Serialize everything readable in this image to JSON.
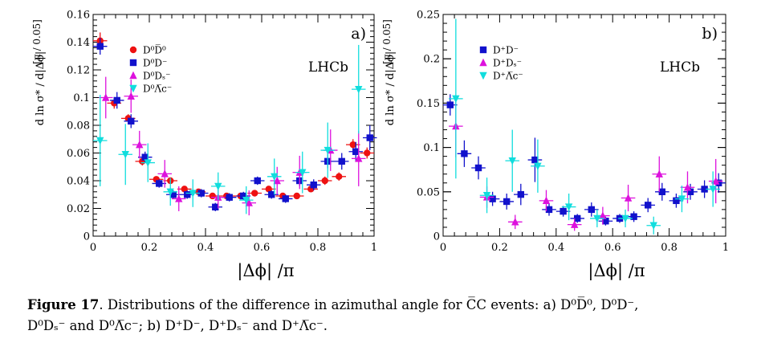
{
  "chart_data": [
    {
      "type": "scatter",
      "panel_label": "a)",
      "experiment_label": "LHCb",
      "xlabel": "|Δϕ| /π",
      "ylabel": "d ln σ* / d|Δϕ|",
      "yunit": "[π / 0.05]",
      "xlim": [
        0,
        1
      ],
      "ylim": [
        0,
        0.16
      ],
      "xticks": [
        "0",
        "0.2",
        "0.4",
        "0.6",
        "0.8",
        "1"
      ],
      "yticks": [
        "0",
        "0.02",
        "0.04",
        "0.06",
        "0.08",
        "0.1",
        "0.12",
        "0.14",
        "0.16"
      ],
      "legend_position": "top-left",
      "grid": false,
      "series": [
        {
          "name": "D⁰D̅⁰",
          "color": "#ee1111",
          "marker": "circle",
          "x": [
            0.025,
            0.075,
            0.125,
            0.175,
            0.225,
            0.275,
            0.325,
            0.375,
            0.425,
            0.475,
            0.525,
            0.575,
            0.625,
            0.675,
            0.725,
            0.775,
            0.825,
            0.875,
            0.925,
            0.975
          ],
          "y": [
            0.141,
            0.096,
            0.085,
            0.054,
            0.041,
            0.04,
            0.034,
            0.032,
            0.029,
            0.029,
            0.029,
            0.031,
            0.034,
            0.029,
            0.029,
            0.034,
            0.04,
            0.043,
            0.066,
            0.06
          ],
          "yerr": [
            0.006,
            0.004,
            0.003,
            0.003,
            0.002,
            0.002,
            0.002,
            0.002,
            0.002,
            0.002,
            0.002,
            0.002,
            0.002,
            0.002,
            0.002,
            0.002,
            0.003,
            0.003,
            0.004,
            0.004
          ]
        },
        {
          "name": "D⁰D⁻",
          "color": "#1111cc",
          "marker": "square",
          "x": [
            0.025,
            0.085,
            0.135,
            0.185,
            0.235,
            0.285,
            0.335,
            0.385,
            0.435,
            0.485,
            0.535,
            0.585,
            0.635,
            0.685,
            0.735,
            0.785,
            0.835,
            0.885,
            0.935,
            0.985
          ],
          "y": [
            0.137,
            0.098,
            0.083,
            0.057,
            0.038,
            0.03,
            0.03,
            0.031,
            0.021,
            0.028,
            0.029,
            0.04,
            0.03,
            0.027,
            0.04,
            0.037,
            0.054,
            0.054,
            0.061,
            0.071
          ],
          "yerr": [
            0.006,
            0.006,
            0.005,
            0.004,
            0.003,
            0.003,
            0.003,
            0.003,
            0.003,
            0.003,
            0.003,
            0.003,
            0.003,
            0.003,
            0.004,
            0.004,
            0.005,
            0.006,
            0.007,
            0.009
          ]
        },
        {
          "name": "D⁰Dₛ⁻",
          "color": "#dd11dd",
          "marker": "triangle-up",
          "x": [
            0.045,
            0.135,
            0.165,
            0.255,
            0.305,
            0.445,
            0.555,
            0.655,
            0.735,
            0.845,
            0.945
          ],
          "y": [
            0.1,
            0.101,
            0.066,
            0.045,
            0.027,
            0.028,
            0.024,
            0.04,
            0.046,
            0.062,
            0.056
          ],
          "yerr": [
            0.015,
            0.012,
            0.01,
            0.01,
            0.009,
            0.008,
            0.009,
            0.01,
            0.012,
            0.015,
            0.02
          ]
        },
        {
          "name": "D⁰Λ̅c⁻",
          "color": "#11dddd",
          "marker": "triangle-down",
          "x": [
            0.025,
            0.115,
            0.195,
            0.275,
            0.355,
            0.445,
            0.545,
            0.645,
            0.745,
            0.835,
            0.945
          ],
          "y": [
            0.069,
            0.059,
            0.053,
            0.032,
            0.031,
            0.036,
            0.026,
            0.043,
            0.046,
            0.062,
            0.106
          ],
          "yerr": [
            0.033,
            0.022,
            0.014,
            0.01,
            0.01,
            0.01,
            0.01,
            0.013,
            0.015,
            0.02,
            0.032
          ]
        }
      ]
    },
    {
      "type": "scatter",
      "panel_label": "b)",
      "experiment_label": "LHCb",
      "xlabel": "|Δϕ| /π",
      "ylabel": "d ln σ* / d|Δϕ|",
      "yunit": "[π / 0.05]",
      "xlim": [
        0,
        1
      ],
      "ylim": [
        0,
        0.25
      ],
      "xticks": [
        "0",
        "0.2",
        "0.4",
        "0.6",
        "0.8",
        "1"
      ],
      "yticks": [
        "0",
        "0.05",
        "0.1",
        "0.15",
        "0.2",
        "0.25"
      ],
      "legend_position": "top-left",
      "grid": false,
      "series": [
        {
          "name": "D⁺D⁻",
          "color": "#1111cc",
          "marker": "square",
          "x": [
            0.025,
            0.075,
            0.125,
            0.175,
            0.225,
            0.275,
            0.325,
            0.375,
            0.425,
            0.475,
            0.525,
            0.575,
            0.625,
            0.675,
            0.725,
            0.775,
            0.825,
            0.875,
            0.925,
            0.975
          ],
          "y": [
            0.148,
            0.093,
            0.077,
            0.042,
            0.039,
            0.047,
            0.086,
            0.03,
            0.028,
            0.02,
            0.03,
            0.017,
            0.02,
            0.022,
            0.035,
            0.05,
            0.04,
            0.05,
            0.053,
            0.06
          ],
          "yerr": [
            0.012,
            0.015,
            0.013,
            0.008,
            0.009,
            0.012,
            0.025,
            0.007,
            0.006,
            0.005,
            0.008,
            0.005,
            0.005,
            0.006,
            0.008,
            0.01,
            0.008,
            0.009,
            0.01,
            0.011
          ]
        },
        {
          "name": "D⁺Dₛ⁻",
          "color": "#dd11dd",
          "marker": "triangle-up",
          "x": [
            0.045,
            0.155,
            0.255,
            0.365,
            0.465,
            0.565,
            0.655,
            0.765,
            0.865,
            0.965
          ],
          "y": [
            0.124,
            0.044,
            0.016,
            0.04,
            0.013,
            0.023,
            0.043,
            0.07,
            0.055,
            0.062
          ],
          "yerr": [
            0.035,
            0.012,
            0.008,
            0.012,
            0.007,
            0.01,
            0.015,
            0.02,
            0.018,
            0.025
          ]
        },
        {
          "name": "D⁺Λ̅c⁻",
          "color": "#11dddd",
          "marker": "triangle-down",
          "x": [
            0.045,
            0.155,
            0.245,
            0.335,
            0.445,
            0.545,
            0.645,
            0.745,
            0.845,
            0.955
          ],
          "y": [
            0.155,
            0.046,
            0.085,
            0.079,
            0.033,
            0.02,
            0.02,
            0.012,
            0.042,
            0.053
          ],
          "yerr": [
            0.09,
            0.02,
            0.035,
            0.03,
            0.015,
            0.01,
            0.01,
            0.01,
            0.015,
            0.02
          ]
        }
      ]
    }
  ],
  "caption": {
    "label": "Figure 17",
    "line1": ". Distributions of the difference in azimuthal angle for C̅C events: a) D⁰D̅⁰, D⁰D⁻,",
    "line2": "D⁰Dₛ⁻ and D⁰Λ̅c⁻; b) D⁺D⁻, D⁺Dₛ⁻ and D⁺Λ̅c⁻."
  }
}
